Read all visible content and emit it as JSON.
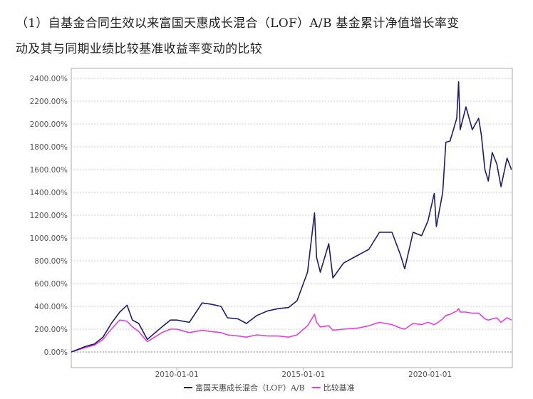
{
  "title_line1": "（1）自基金合同生效以来富国天惠成长混合（LOF）A/B 基金累计净值增长率变",
  "title_line2": "动及其与同期业绩比较基准收益率变动的比较",
  "chart_data": {
    "type": "line",
    "title": "（1）自基金合同生效以来富国天惠成长混合（LOF）A/B 基金累计净值增长率变动及其与同期业绩比较基准收益率变动的比较",
    "xlabel": "",
    "ylabel": "",
    "xlim": [
      "2005-11-01",
      "2023-04-01"
    ],
    "ylim": [
      -150,
      2500
    ],
    "y_ticks": [
      0,
      200,
      400,
      600,
      800,
      1000,
      1200,
      1400,
      1600,
      1800,
      2000,
      2200,
      2400
    ],
    "y_tick_labels": [
      "0.00%",
      "200.00%",
      "400.00%",
      "600.00%",
      "800.00%",
      "1000.00%",
      "1200.00%",
      "1400.00%",
      "1600.00%",
      "1800.00%",
      "2000.00%",
      "2200.00%",
      "2400.00%"
    ],
    "x_ticks": [
      "2010-01-01",
      "2015-01-01",
      "2020-01-01"
    ],
    "grid": true,
    "legend_position": "bottom",
    "x": [
      "2005-11-01",
      "2006-06-01",
      "2006-10-01",
      "2007-02-01",
      "2007-06-01",
      "2007-10-01",
      "2008-01-15",
      "2008-04-01",
      "2008-07-01",
      "2008-11-01",
      "2009-06-01",
      "2009-10-01",
      "2010-01-01",
      "2010-07-01",
      "2011-01-01",
      "2011-05-01",
      "2011-10-01",
      "2012-01-01",
      "2012-06-01",
      "2012-10-01",
      "2013-03-01",
      "2013-08-01",
      "2014-01-01",
      "2014-06-01",
      "2014-10-01",
      "2015-03-01",
      "2015-06-10",
      "2015-07-10",
      "2015-09-01",
      "2016-01-01",
      "2016-03-01",
      "2016-08-01",
      "2017-03-01",
      "2017-08-01",
      "2018-01-01",
      "2018-07-01",
      "2018-11-01",
      "2019-01-01",
      "2019-05-01",
      "2019-09-01",
      "2019-12-01",
      "2020-03-01",
      "2020-04-01",
      "2020-07-01",
      "2020-08-15",
      "2020-10-15",
      "2021-01-20",
      "2021-02-15",
      "2021-03-10",
      "2021-06-01",
      "2021-09-01",
      "2021-12-01",
      "2022-01-10",
      "2022-03-01",
      "2022-04-20",
      "2022-06-15",
      "2022-08-20",
      "2022-10-20",
      "2023-01-15",
      "2023-03-20"
    ],
    "series": [
      {
        "name": "富国天惠成长混合（LOF）A/B",
        "color": "#1c1c6b",
        "values": [
          0,
          50,
          70,
          130,
          250,
          350,
          410,
          280,
          250,
          110,
          220,
          280,
          280,
          260,
          430,
          420,
          400,
          300,
          290,
          250,
          320,
          360,
          380,
          390,
          450,
          700,
          1220,
          830,
          700,
          950,
          650,
          780,
          850,
          900,
          1050,
          1050,
          850,
          730,
          1050,
          1020,
          1150,
          1390,
          1100,
          1400,
          1840,
          1850,
          2050,
          2370,
          1950,
          2150,
          1950,
          2050,
          1900,
          1600,
          1500,
          1750,
          1650,
          1450,
          1700,
          1600
        ]
      },
      {
        "name": "比较基准",
        "color": "#e040e0",
        "values": [
          0,
          40,
          60,
          110,
          200,
          280,
          270,
          220,
          180,
          90,
          170,
          200,
          200,
          170,
          190,
          180,
          170,
          150,
          140,
          130,
          150,
          140,
          140,
          130,
          150,
          230,
          330,
          260,
          220,
          230,
          190,
          200,
          210,
          230,
          260,
          240,
          210,
          200,
          250,
          240,
          260,
          240,
          250,
          290,
          320,
          330,
          360,
          380,
          350,
          350,
          340,
          340,
          320,
          290,
          280,
          290,
          300,
          260,
          300,
          280
        ]
      }
    ]
  }
}
